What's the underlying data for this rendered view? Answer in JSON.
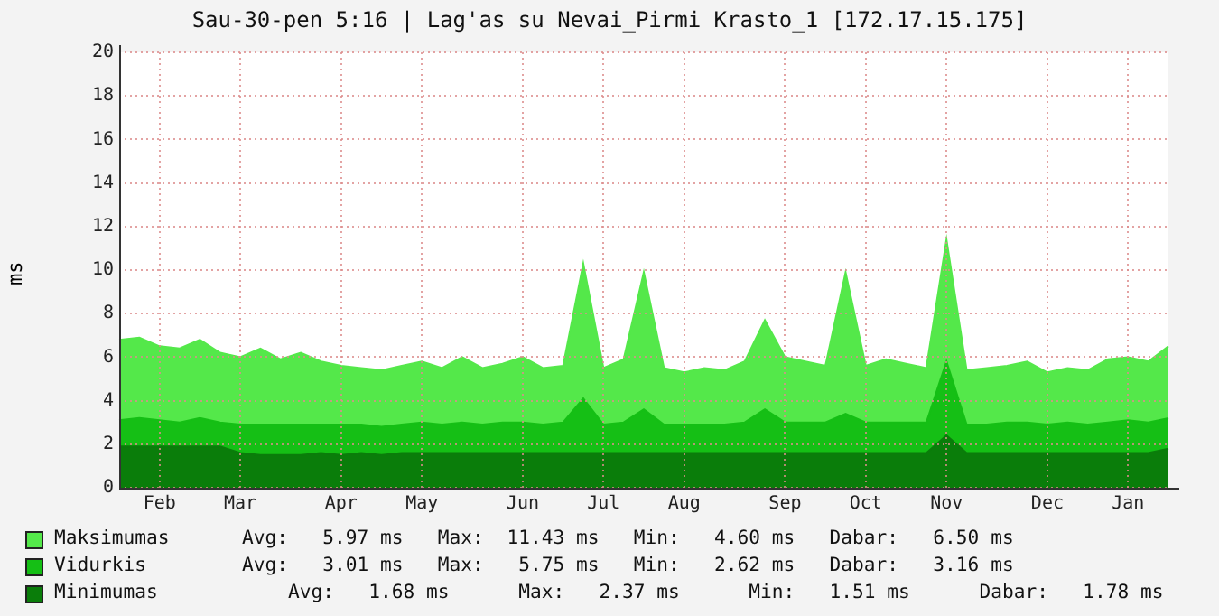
{
  "chart_data": {
    "type": "area",
    "title": "Sau-30-pen 5:16 | Lag'as su Nevai_Pirmi Krasto_1 [172.17.15.175]",
    "ylabel": "ms",
    "categories": [
      null,
      null,
      "Feb",
      null,
      null,
      null,
      "Mar",
      null,
      null,
      null,
      null,
      "Apr",
      null,
      null,
      null,
      "May",
      null,
      null,
      null,
      null,
      "Jun",
      null,
      null,
      null,
      "Jul",
      null,
      null,
      null,
      "Aug",
      null,
      null,
      null,
      null,
      "Sep",
      null,
      null,
      null,
      "Oct",
      null,
      null,
      null,
      "Nov",
      null,
      null,
      null,
      null,
      "Dec",
      null,
      null,
      null,
      "Jan",
      null,
      null
    ],
    "series": [
      {
        "name": "Maksimumas",
        "color": "#54e84a",
        "values": [
          6.8,
          6.9,
          6.5,
          6.4,
          6.8,
          6.2,
          6.0,
          6.4,
          5.9,
          6.2,
          5.8,
          5.6,
          5.5,
          5.4,
          5.6,
          5.8,
          5.5,
          6.0,
          5.5,
          5.7,
          6.0,
          5.5,
          5.6,
          10.3,
          5.5,
          5.9,
          9.9,
          5.5,
          5.3,
          5.5,
          5.4,
          5.8,
          7.7,
          6.0,
          5.8,
          5.6,
          9.9,
          5.6,
          5.9,
          5.7,
          5.5,
          11.4,
          5.4,
          5.5,
          5.6,
          5.8,
          5.3,
          5.5,
          5.4,
          5.9,
          6.0,
          5.8,
          6.5
        ]
      },
      {
        "name": "Vidurkis",
        "color": "#15bf15",
        "values": [
          3.1,
          3.2,
          3.1,
          3.0,
          3.2,
          3.0,
          2.9,
          2.9,
          2.9,
          2.9,
          2.9,
          2.9,
          2.9,
          2.8,
          2.9,
          3.0,
          2.9,
          3.0,
          2.9,
          3.0,
          3.0,
          2.9,
          3.0,
          4.1,
          2.9,
          3.0,
          3.6,
          2.9,
          2.9,
          2.9,
          2.9,
          3.0,
          3.6,
          3.0,
          3.0,
          3.0,
          3.4,
          3.0,
          3.0,
          3.0,
          3.0,
          5.8,
          2.9,
          2.9,
          3.0,
          3.0,
          2.9,
          3.0,
          2.9,
          3.0,
          3.1,
          3.0,
          3.2
        ]
      },
      {
        "name": "Minimumas",
        "color": "#0a7d0a",
        "values": [
          1.9,
          1.9,
          1.9,
          1.9,
          1.9,
          1.9,
          1.6,
          1.5,
          1.5,
          1.5,
          1.6,
          1.5,
          1.6,
          1.5,
          1.6,
          1.6,
          1.6,
          1.6,
          1.6,
          1.6,
          1.6,
          1.6,
          1.6,
          1.6,
          1.6,
          1.6,
          1.6,
          1.6,
          1.6,
          1.6,
          1.6,
          1.6,
          1.6,
          1.6,
          1.6,
          1.6,
          1.6,
          1.6,
          1.6,
          1.6,
          1.6,
          2.4,
          1.6,
          1.6,
          1.6,
          1.6,
          1.6,
          1.6,
          1.6,
          1.6,
          1.6,
          1.6,
          1.8
        ]
      }
    ],
    "ylim": [
      0,
      20
    ],
    "yticks": [
      0,
      2,
      4,
      6,
      8,
      10,
      12,
      14,
      16,
      18,
      20
    ],
    "grid": true,
    "legend": "bottom",
    "marker": "none",
    "annotations": [
      "Avg:   5.97 ms   Max:  11.43 ms   Min:   4.60 ms   Dabar:   6.50 ms",
      "Avg:   3.01 ms   Max:   5.75 ms   Min:   2.62 ms   Dabar:   3.16 ms",
      "    Avg:   1.68 ms      Max:   2.37 ms      Min:   1.51 ms      Dabar:   1.78 ms"
    ]
  }
}
